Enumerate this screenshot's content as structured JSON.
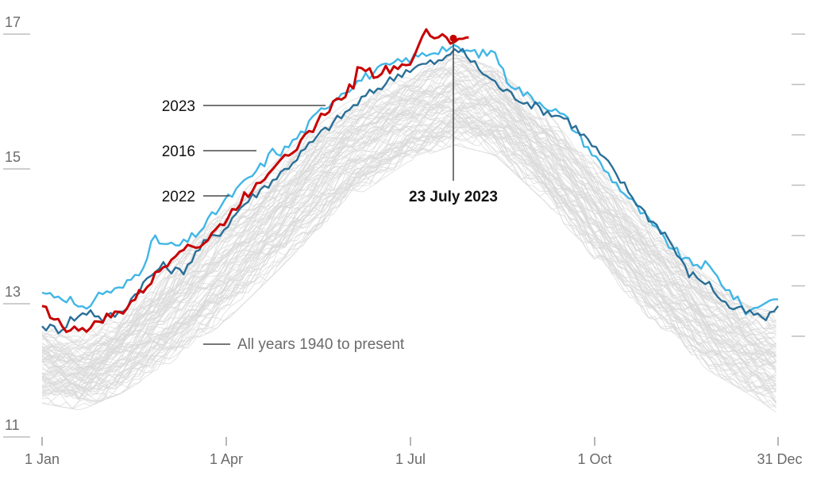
{
  "chart_data": {
    "type": "line",
    "title": "",
    "xlabel": "",
    "ylabel": "",
    "xlim": [
      1,
      365
    ],
    "ylim": [
      11,
      17
    ],
    "y_ticks": [
      11,
      13,
      15,
      17
    ],
    "x_ticks": [
      {
        "day": 1,
        "label": "1 Jan"
      },
      {
        "day": 91,
        "label": "1 Apr"
      },
      {
        "day": 182,
        "label": "1 Jul"
      },
      {
        "day": 274,
        "label": "1 Oct"
      },
      {
        "day": 365,
        "label": "31 Dec"
      }
    ],
    "right_ticks": [
      17,
      16.25,
      15.5,
      14.75,
      14,
      13.25,
      12.5
    ],
    "background_range": {
      "label": "All years 1940 to present",
      "lower": [
        [
          1,
          11.6
        ],
        [
          20,
          11.5
        ],
        [
          40,
          11.75
        ],
        [
          60,
          12.1
        ],
        [
          91,
          12.8
        ],
        [
          120,
          13.65
        ],
        [
          150,
          14.55
        ],
        [
          182,
          15.2
        ],
        [
          205,
          15.45
        ],
        [
          225,
          15.3
        ],
        [
          250,
          14.6
        ],
        [
          274,
          13.75
        ],
        [
          300,
          12.9
        ],
        [
          330,
          12.1
        ],
        [
          350,
          11.75
        ],
        [
          365,
          11.45
        ]
      ],
      "upper": [
        [
          1,
          12.55
        ],
        [
          20,
          12.45
        ],
        [
          40,
          12.75
        ],
        [
          60,
          13.35
        ],
        [
          91,
          14.3
        ],
        [
          120,
          15.1
        ],
        [
          150,
          15.85
        ],
        [
          182,
          16.3
        ],
        [
          205,
          16.6
        ],
        [
          225,
          16.4
        ],
        [
          250,
          15.75
        ],
        [
          274,
          15.0
        ],
        [
          300,
          14.15
        ],
        [
          330,
          13.3
        ],
        [
          350,
          12.85
        ],
        [
          365,
          12.75
        ]
      ],
      "count": 83
    },
    "series": [
      {
        "name": "2016",
        "color": "#41b6e6",
        "points": [
          [
            1,
            13.15
          ],
          [
            10,
            13.1
          ],
          [
            15,
            13.05
          ],
          [
            20,
            12.85
          ],
          [
            25,
            13.0
          ],
          [
            30,
            13.15
          ],
          [
            40,
            13.2
          ],
          [
            50,
            13.5
          ],
          [
            56,
            13.95
          ],
          [
            63,
            13.85
          ],
          [
            70,
            13.85
          ],
          [
            80,
            14.1
          ],
          [
            91,
            14.5
          ],
          [
            100,
            14.75
          ],
          [
            110,
            15.05
          ],
          [
            115,
            15.25
          ],
          [
            120,
            15.25
          ],
          [
            130,
            15.55
          ],
          [
            140,
            15.9
          ],
          [
            150,
            16.15
          ],
          [
            160,
            16.35
          ],
          [
            170,
            16.5
          ],
          [
            180,
            16.6
          ],
          [
            190,
            16.7
          ],
          [
            200,
            16.8
          ],
          [
            210,
            16.75
          ],
          [
            220,
            16.7
          ],
          [
            225,
            16.75
          ],
          [
            230,
            16.35
          ],
          [
            240,
            16.1
          ],
          [
            250,
            15.95
          ],
          [
            260,
            15.75
          ],
          [
            270,
            15.35
          ],
          [
            275,
            15.15
          ],
          [
            280,
            14.95
          ],
          [
            290,
            14.6
          ],
          [
            300,
            14.25
          ],
          [
            310,
            13.9
          ],
          [
            320,
            13.6
          ],
          [
            330,
            13.55
          ],
          [
            340,
            13.2
          ],
          [
            350,
            12.85
          ],
          [
            360,
            13.05
          ],
          [
            365,
            13.05
          ]
        ]
      },
      {
        "name": "2022",
        "color": "#2a6f97",
        "points": [
          [
            1,
            12.65
          ],
          [
            10,
            12.6
          ],
          [
            15,
            12.75
          ],
          [
            20,
            12.8
          ],
          [
            25,
            12.9
          ],
          [
            30,
            12.75
          ],
          [
            40,
            12.85
          ],
          [
            50,
            13.25
          ],
          [
            60,
            13.55
          ],
          [
            70,
            13.45
          ],
          [
            80,
            13.85
          ],
          [
            91,
            14.1
          ],
          [
            100,
            14.45
          ],
          [
            110,
            14.7
          ],
          [
            120,
            14.95
          ],
          [
            130,
            15.25
          ],
          [
            140,
            15.55
          ],
          [
            150,
            15.8
          ],
          [
            160,
            16.05
          ],
          [
            170,
            16.25
          ],
          [
            180,
            16.45
          ],
          [
            190,
            16.55
          ],
          [
            200,
            16.6
          ],
          [
            205,
            16.8
          ],
          [
            210,
            16.7
          ],
          [
            220,
            16.4
          ],
          [
            230,
            16.15
          ],
          [
            240,
            16.0
          ],
          [
            250,
            15.85
          ],
          [
            260,
            15.75
          ],
          [
            270,
            15.45
          ],
          [
            280,
            15.1
          ],
          [
            290,
            14.7
          ],
          [
            300,
            14.3
          ],
          [
            310,
            14.0
          ],
          [
            320,
            13.45
          ],
          [
            330,
            13.3
          ],
          [
            340,
            12.95
          ],
          [
            350,
            12.85
          ],
          [
            360,
            12.75
          ],
          [
            365,
            12.95
          ]
        ]
      },
      {
        "name": "2023",
        "color": "#c70000",
        "points": [
          [
            1,
            12.95
          ],
          [
            10,
            12.7
          ],
          [
            15,
            12.55
          ],
          [
            20,
            12.65
          ],
          [
            25,
            12.6
          ],
          [
            30,
            12.75
          ],
          [
            40,
            12.85
          ],
          [
            50,
            13.15
          ],
          [
            60,
            13.5
          ],
          [
            70,
            13.85
          ],
          [
            80,
            13.85
          ],
          [
            91,
            14.2
          ],
          [
            100,
            14.55
          ],
          [
            110,
            14.85
          ],
          [
            120,
            15.2
          ],
          [
            130,
            15.4
          ],
          [
            140,
            15.8
          ],
          [
            150,
            16.1
          ],
          [
            155,
            16.25
          ],
          [
            158,
            16.55
          ],
          [
            165,
            16.4
          ],
          [
            170,
            16.45
          ],
          [
            180,
            16.55
          ],
          [
            185,
            16.6
          ],
          [
            190,
            17.05
          ],
          [
            195,
            16.95
          ],
          [
            200,
            17.0
          ],
          [
            205,
            16.85
          ],
          [
            210,
            16.95
          ],
          [
            212,
            16.95
          ]
        ]
      }
    ],
    "annotations": [
      {
        "label": "2023",
        "target_day": 141,
        "target_value": 15.9
      },
      {
        "label": "2016",
        "target_day": 106,
        "target_value": 15.0
      },
      {
        "label": "2022",
        "target_day": 93,
        "target_value": 14.35
      },
      {
        "label": "23 July 2023",
        "target_day": 204,
        "target_value": 16.95
      }
    ],
    "highlight_point": {
      "day": 204,
      "value": 16.95,
      "label": "23 July 2023"
    }
  },
  "labels": {
    "y_tick_17": "17",
    "y_tick_15": "15",
    "y_tick_13": "13",
    "y_tick_11": "11",
    "x_tick_jan": "1 Jan",
    "x_tick_apr": "1 Apr",
    "x_tick_jul": "1 Jul",
    "x_tick_oct": "1 Oct",
    "x_tick_dec": "31 Dec",
    "ann_2023": "2023",
    "ann_2016": "2016",
    "ann_2022": "2022",
    "ann_date": "23 July 2023",
    "ann_all_years": "All years 1940 to present"
  }
}
